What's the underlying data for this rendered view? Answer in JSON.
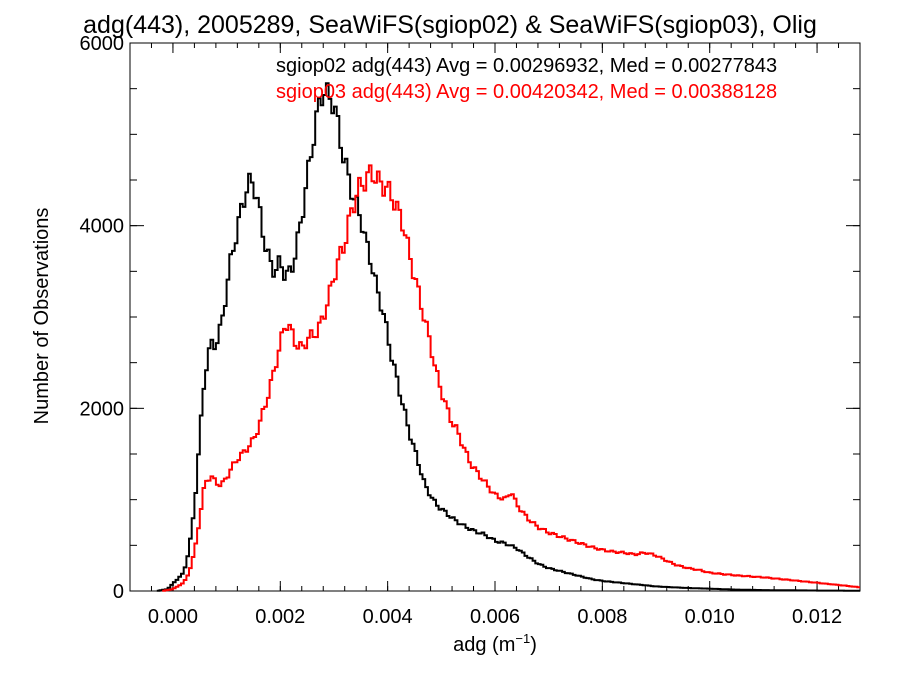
{
  "chart_data": {
    "type": "line",
    "title": "adg(443), 2005289, SeaWiFS(sgiop02) & SeaWiFS(sgiop03), Olig",
    "xlabel_base": "adg (m",
    "xlabel_exp": "−1",
    "xlabel_close": ")",
    "ylabel": "Number of Observations",
    "xlim": [
      -0.0008,
      0.0128
    ],
    "ylim": [
      0,
      6000
    ],
    "xticks": [
      0.0,
      0.002,
      0.004,
      0.006,
      0.008,
      0.01,
      0.012
    ],
    "xtick_labels": [
      "0.000",
      "0.002",
      "0.004",
      "0.006",
      "0.008",
      "0.010",
      "0.012"
    ],
    "yticks": [
      0,
      2000,
      4000,
      6000
    ],
    "ytick_labels": [
      "0",
      "2000",
      "4000",
      "6000"
    ],
    "grid": false,
    "legend_position": "top-right",
    "series": [
      {
        "name": "sgiop02",
        "color": "#000000",
        "annotation": "sgiop02 adg(443) Avg = 0.00296932, Med = 0.00277843",
        "points": [
          [
            -0.0003,
            0
          ],
          [
            -0.0001,
            20
          ],
          [
            0.0,
            80
          ],
          [
            0.0002,
            200
          ],
          [
            0.0003,
            450
          ],
          [
            0.0004,
            900
          ],
          [
            0.0005,
            1700
          ],
          [
            0.0006,
            2400
          ],
          [
            0.0007,
            2700
          ],
          [
            0.0008,
            2700
          ],
          [
            0.0009,
            2900
          ],
          [
            0.001,
            3300
          ],
          [
            0.0011,
            3700
          ],
          [
            0.0012,
            3950
          ],
          [
            0.0013,
            4250
          ],
          [
            0.0014,
            4450
          ],
          [
            0.0015,
            4480
          ],
          [
            0.0016,
            4200
          ],
          [
            0.0017,
            3850
          ],
          [
            0.0018,
            3600
          ],
          [
            0.0019,
            3500
          ],
          [
            0.002,
            3600
          ],
          [
            0.0021,
            3450
          ],
          [
            0.0022,
            3500
          ],
          [
            0.0023,
            3750
          ],
          [
            0.0024,
            4100
          ],
          [
            0.0025,
            4500
          ],
          [
            0.0026,
            4900
          ],
          [
            0.0027,
            5250
          ],
          [
            0.0028,
            5500
          ],
          [
            0.0029,
            5400
          ],
          [
            0.003,
            5350
          ],
          [
            0.0031,
            5000
          ],
          [
            0.0032,
            4700
          ],
          [
            0.0033,
            4450
          ],
          [
            0.0034,
            4250
          ],
          [
            0.0035,
            4100
          ],
          [
            0.0036,
            3800
          ],
          [
            0.0037,
            3600
          ],
          [
            0.0038,
            3300
          ],
          [
            0.0039,
            3100
          ],
          [
            0.004,
            2800
          ],
          [
            0.0041,
            2500
          ],
          [
            0.0042,
            2250
          ],
          [
            0.0043,
            2000
          ],
          [
            0.0044,
            1750
          ],
          [
            0.0045,
            1550
          ],
          [
            0.0046,
            1350
          ],
          [
            0.0047,
            1150
          ],
          [
            0.0048,
            1050
          ],
          [
            0.0049,
            950
          ],
          [
            0.005,
            900
          ],
          [
            0.0052,
            800
          ],
          [
            0.0054,
            720
          ],
          [
            0.0056,
            660
          ],
          [
            0.0058,
            620
          ],
          [
            0.006,
            550
          ],
          [
            0.0062,
            520
          ],
          [
            0.0064,
            470
          ],
          [
            0.0066,
            380
          ],
          [
            0.0068,
            300
          ],
          [
            0.007,
            250
          ],
          [
            0.0072,
            220
          ],
          [
            0.0074,
            190
          ],
          [
            0.0076,
            160
          ],
          [
            0.0078,
            130
          ],
          [
            0.008,
            110
          ],
          [
            0.0085,
            80
          ],
          [
            0.009,
            50
          ],
          [
            0.0095,
            35
          ],
          [
            0.01,
            25
          ],
          [
            0.0105,
            15
          ],
          [
            0.011,
            10
          ],
          [
            0.012,
            5
          ],
          [
            0.0128,
            3
          ]
        ]
      },
      {
        "name": "sgiop03",
        "color": "#ff0000",
        "annotation": "sgiop03 adg(443) Avg = 0.00420342, Med = 0.00388128",
        "points": [
          [
            -0.0002,
            0
          ],
          [
            0.0,
            20
          ],
          [
            0.0002,
            90
          ],
          [
            0.0003,
            200
          ],
          [
            0.0004,
            420
          ],
          [
            0.0005,
            800
          ],
          [
            0.0006,
            1200
          ],
          [
            0.0007,
            1250
          ],
          [
            0.0008,
            1200
          ],
          [
            0.0009,
            1150
          ],
          [
            0.001,
            1250
          ],
          [
            0.0011,
            1350
          ],
          [
            0.0012,
            1450
          ],
          [
            0.0013,
            1500
          ],
          [
            0.0014,
            1580
          ],
          [
            0.0015,
            1650
          ],
          [
            0.0016,
            1800
          ],
          [
            0.0017,
            2000
          ],
          [
            0.0018,
            2200
          ],
          [
            0.0019,
            2450
          ],
          [
            0.002,
            2700
          ],
          [
            0.0021,
            2950
          ],
          [
            0.0022,
            2850
          ],
          [
            0.0023,
            2700
          ],
          [
            0.0024,
            2650
          ],
          [
            0.0025,
            2750
          ],
          [
            0.0026,
            2800
          ],
          [
            0.0027,
            2850
          ],
          [
            0.0028,
            3000
          ],
          [
            0.0029,
            3200
          ],
          [
            0.003,
            3450
          ],
          [
            0.0031,
            3650
          ],
          [
            0.0032,
            3800
          ],
          [
            0.0033,
            4100
          ],
          [
            0.0034,
            4300
          ],
          [
            0.0035,
            4450
          ],
          [
            0.0036,
            4500
          ],
          [
            0.0037,
            4600
          ],
          [
            0.0038,
            4500
          ],
          [
            0.0039,
            4450
          ],
          [
            0.004,
            4400
          ],
          [
            0.0041,
            4300
          ],
          [
            0.0042,
            4150
          ],
          [
            0.0043,
            4000
          ],
          [
            0.0044,
            3700
          ],
          [
            0.0045,
            3450
          ],
          [
            0.0046,
            3200
          ],
          [
            0.0047,
            2950
          ],
          [
            0.0048,
            2700
          ],
          [
            0.0049,
            2400
          ],
          [
            0.005,
            2200
          ],
          [
            0.0051,
            2000
          ],
          [
            0.0052,
            1850
          ],
          [
            0.0053,
            1750
          ],
          [
            0.0054,
            1600
          ],
          [
            0.0055,
            1450
          ],
          [
            0.0056,
            1350
          ],
          [
            0.0058,
            1200
          ],
          [
            0.006,
            1050
          ],
          [
            0.0062,
            1000
          ],
          [
            0.0063,
            1100
          ],
          [
            0.0064,
            950
          ],
          [
            0.0066,
            800
          ],
          [
            0.0068,
            700
          ],
          [
            0.007,
            640
          ],
          [
            0.0072,
            600
          ],
          [
            0.0074,
            560
          ],
          [
            0.0076,
            520
          ],
          [
            0.0078,
            480
          ],
          [
            0.008,
            450
          ],
          [
            0.0082,
            430
          ],
          [
            0.0084,
            420
          ],
          [
            0.0086,
            400
          ],
          [
            0.0088,
            420
          ],
          [
            0.009,
            390
          ],
          [
            0.0092,
            330
          ],
          [
            0.0094,
            280
          ],
          [
            0.0096,
            250
          ],
          [
            0.0098,
            230
          ],
          [
            0.01,
            200
          ],
          [
            0.0105,
            170
          ],
          [
            0.011,
            150
          ],
          [
            0.0115,
            120
          ],
          [
            0.012,
            90
          ],
          [
            0.0125,
            60
          ],
          [
            0.0128,
            40
          ]
        ]
      }
    ]
  }
}
